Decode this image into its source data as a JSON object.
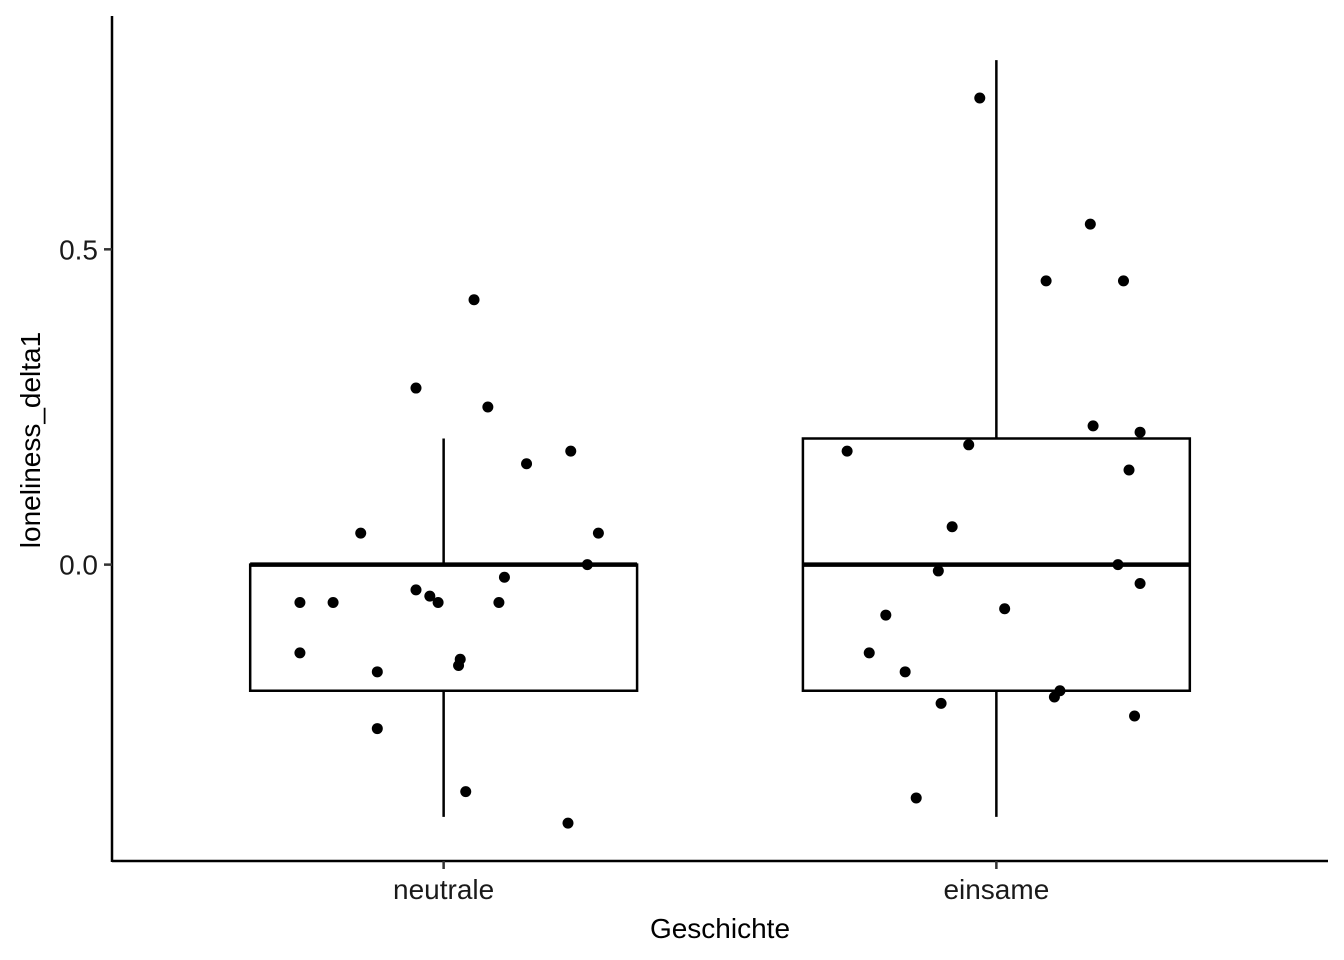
{
  "chart_data": {
    "type": "box",
    "xlabel": "Geschichte",
    "ylabel": "loneliness_delta1",
    "categories": [
      "neutrale",
      "einsame"
    ],
    "ylim": [
      -0.47,
      0.87
    ],
    "yticks": [
      0.0,
      0.5
    ],
    "ytick_labels": [
      "0.0",
      "0.5"
    ],
    "grid": false,
    "boxes": [
      {
        "category": "neutrale",
        "whisker_low": -0.4,
        "q1": -0.2,
        "median": 0.0,
        "q3": 0.0,
        "whisker_high": 0.2
      },
      {
        "category": "einsame",
        "whisker_low": -0.4,
        "q1": -0.2,
        "median": 0.0,
        "q3": 0.2,
        "whisker_high": 0.8
      }
    ],
    "points": [
      {
        "category": "neutrale",
        "jitter": 0.055,
        "y": 0.42
      },
      {
        "category": "neutrale",
        "jitter": -0.05,
        "y": 0.28
      },
      {
        "category": "neutrale",
        "jitter": 0.08,
        "y": 0.25
      },
      {
        "category": "neutrale",
        "jitter": 0.15,
        "y": 0.16
      },
      {
        "category": "neutrale",
        "jitter": 0.23,
        "y": 0.18
      },
      {
        "category": "neutrale",
        "jitter": -0.15,
        "y": 0.05
      },
      {
        "category": "neutrale",
        "jitter": 0.28,
        "y": 0.05
      },
      {
        "category": "neutrale",
        "jitter": 0.26,
        "y": 0.0
      },
      {
        "category": "neutrale",
        "jitter": 0.11,
        "y": -0.02
      },
      {
        "category": "neutrale",
        "jitter": -0.05,
        "y": -0.04
      },
      {
        "category": "neutrale",
        "jitter": -0.025,
        "y": -0.05
      },
      {
        "category": "neutrale",
        "jitter": -0.01,
        "y": -0.06
      },
      {
        "category": "neutrale",
        "jitter": 0.1,
        "y": -0.06
      },
      {
        "category": "neutrale",
        "jitter": -0.26,
        "y": -0.06
      },
      {
        "category": "neutrale",
        "jitter": -0.2,
        "y": -0.06
      },
      {
        "category": "neutrale",
        "jitter": -0.26,
        "y": -0.14
      },
      {
        "category": "neutrale",
        "jitter": 0.03,
        "y": -0.15
      },
      {
        "category": "neutrale",
        "jitter": 0.027,
        "y": -0.16
      },
      {
        "category": "neutrale",
        "jitter": -0.12,
        "y": -0.17
      },
      {
        "category": "neutrale",
        "jitter": -0.12,
        "y": -0.26
      },
      {
        "category": "neutrale",
        "jitter": 0.04,
        "y": -0.36
      },
      {
        "category": "neutrale",
        "jitter": 0.225,
        "y": -0.41
      },
      {
        "category": "einsame",
        "jitter": -0.03,
        "y": 0.74
      },
      {
        "category": "einsame",
        "jitter": 0.17,
        "y": 0.54
      },
      {
        "category": "einsame",
        "jitter": 0.09,
        "y": 0.45
      },
      {
        "category": "einsame",
        "jitter": 0.23,
        "y": 0.45
      },
      {
        "category": "einsame",
        "jitter": 0.175,
        "y": 0.22
      },
      {
        "category": "einsame",
        "jitter": 0.26,
        "y": 0.21
      },
      {
        "category": "einsame",
        "jitter": -0.05,
        "y": 0.19
      },
      {
        "category": "einsame",
        "jitter": -0.27,
        "y": 0.18
      },
      {
        "category": "einsame",
        "jitter": 0.24,
        "y": 0.15
      },
      {
        "category": "einsame",
        "jitter": -0.08,
        "y": 0.06
      },
      {
        "category": "einsame",
        "jitter": 0.22,
        "y": 0.0
      },
      {
        "category": "einsame",
        "jitter": -0.105,
        "y": -0.01
      },
      {
        "category": "einsame",
        "jitter": 0.26,
        "y": -0.03
      },
      {
        "category": "einsame",
        "jitter": 0.015,
        "y": -0.07
      },
      {
        "category": "einsame",
        "jitter": -0.2,
        "y": -0.08
      },
      {
        "category": "einsame",
        "jitter": -0.23,
        "y": -0.14
      },
      {
        "category": "einsame",
        "jitter": -0.165,
        "y": -0.17
      },
      {
        "category": "einsame",
        "jitter": 0.115,
        "y": -0.2
      },
      {
        "category": "einsame",
        "jitter": 0.105,
        "y": -0.21
      },
      {
        "category": "einsame",
        "jitter": -0.1,
        "y": -0.22
      },
      {
        "category": "einsame",
        "jitter": 0.25,
        "y": -0.24
      },
      {
        "category": "einsame",
        "jitter": -0.145,
        "y": -0.37
      }
    ]
  }
}
